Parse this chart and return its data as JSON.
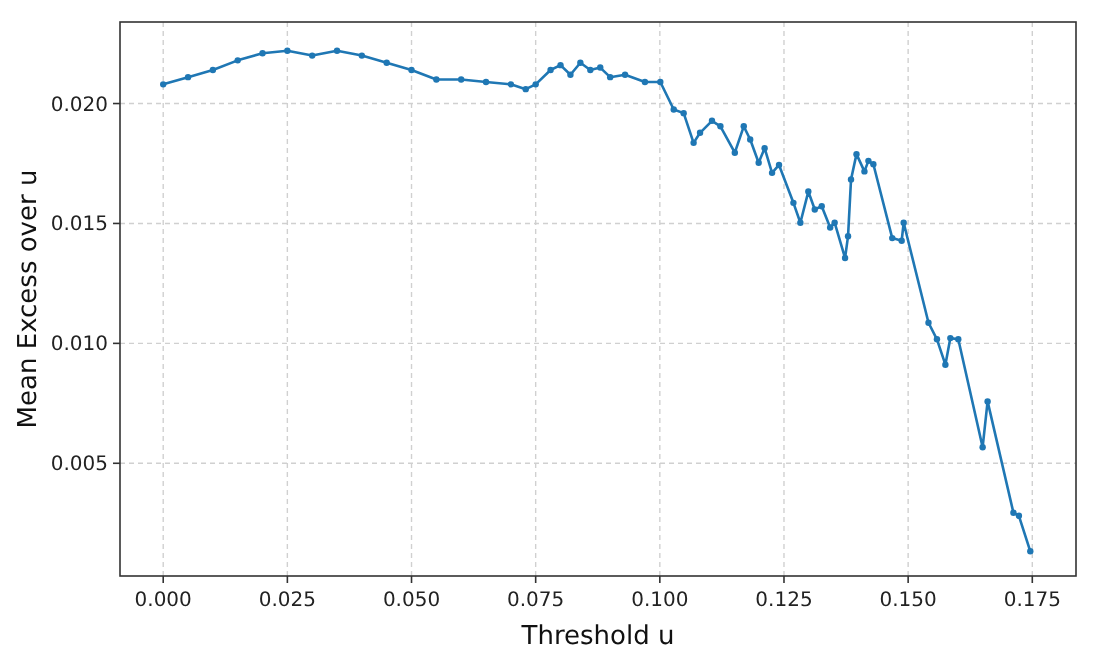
{
  "chart_data": {
    "type": "line",
    "xlabel": "Threshold u",
    "ylabel": "Mean Excess over u",
    "xlim": [
      -0.0087,
      0.1838
    ],
    "ylim": [
      0.0003,
      0.0234
    ],
    "xticks": [
      {
        "value": 0,
        "label": "0.000"
      },
      {
        "value": 0.025,
        "label": "0.025"
      },
      {
        "value": 0.05,
        "label": "0.050"
      },
      {
        "value": 0.075,
        "label": "0.075"
      },
      {
        "value": 0.1,
        "label": "0.100"
      },
      {
        "value": 0.125,
        "label": "0.125"
      },
      {
        "value": 0.15,
        "label": "0.150"
      },
      {
        "value": 0.175,
        "label": "0.175"
      }
    ],
    "yticks": [
      {
        "value": 0.005,
        "label": "0.005"
      },
      {
        "value": 0.01,
        "label": "0.010"
      },
      {
        "value": 0.015,
        "label": "0.015"
      },
      {
        "value": 0.02,
        "label": "0.020"
      }
    ],
    "grid": true,
    "marker": "circle",
    "line_style": "solid",
    "series": [
      {
        "color": "#1f77b4",
        "x": [
          0,
          0.005,
          0.01,
          0.015,
          0.02,
          0.025,
          0.03,
          0.035,
          0.04,
          0.045,
          0.05,
          0.055,
          0.06,
          0.065,
          0.07,
          0.073,
          0.075,
          0.078,
          0.08,
          0.082,
          0.084,
          0.086,
          0.088,
          0.09,
          0.093,
          0.097,
          0.1001,
          0.1028,
          0.1048,
          0.1068,
          0.1081,
          0.1105,
          0.1122,
          0.1151,
          0.1169,
          0.1182,
          0.1199,
          0.1211,
          0.1226,
          0.124,
          0.1269,
          0.1283,
          0.1299,
          0.1312,
          0.1326,
          0.1343,
          0.1352,
          0.1373,
          0.1379,
          0.1385,
          0.1396,
          0.1412,
          0.142,
          0.143,
          0.1468,
          0.1487,
          0.1491,
          0.1541,
          0.1558,
          0.1575,
          0.1585,
          0.1601,
          0.165,
          0.166,
          0.1712,
          0.1723,
          0.1746
        ],
        "values": [
          0.0208,
          0.0211,
          0.0214,
          0.0218,
          0.0221,
          0.0222,
          0.022,
          0.0222,
          0.022,
          0.0217,
          0.0214,
          0.021,
          0.021,
          0.0209,
          0.0208,
          0.0206,
          0.0208,
          0.0214,
          0.0216,
          0.0212,
          0.0217,
          0.0214,
          0.0215,
          0.0211,
          0.0212,
          0.0209,
          0.0209,
          0.01975,
          0.0196,
          0.01836,
          0.01878,
          0.01928,
          0.01905,
          0.01795,
          0.01905,
          0.0185,
          0.01753,
          0.01814,
          0.01711,
          0.01744,
          0.01586,
          0.01503,
          0.01633,
          0.01558,
          0.01572,
          0.01483,
          0.01503,
          0.01356,
          0.01447,
          0.01683,
          0.01789,
          0.01717,
          0.01761,
          0.01747,
          0.01439,
          0.01428,
          0.01503,
          0.01086,
          0.01017,
          0.00911,
          0.01022,
          0.01017,
          0.00567,
          0.00758,
          0.00294,
          0.00281,
          0.00133
        ]
      }
    ]
  }
}
